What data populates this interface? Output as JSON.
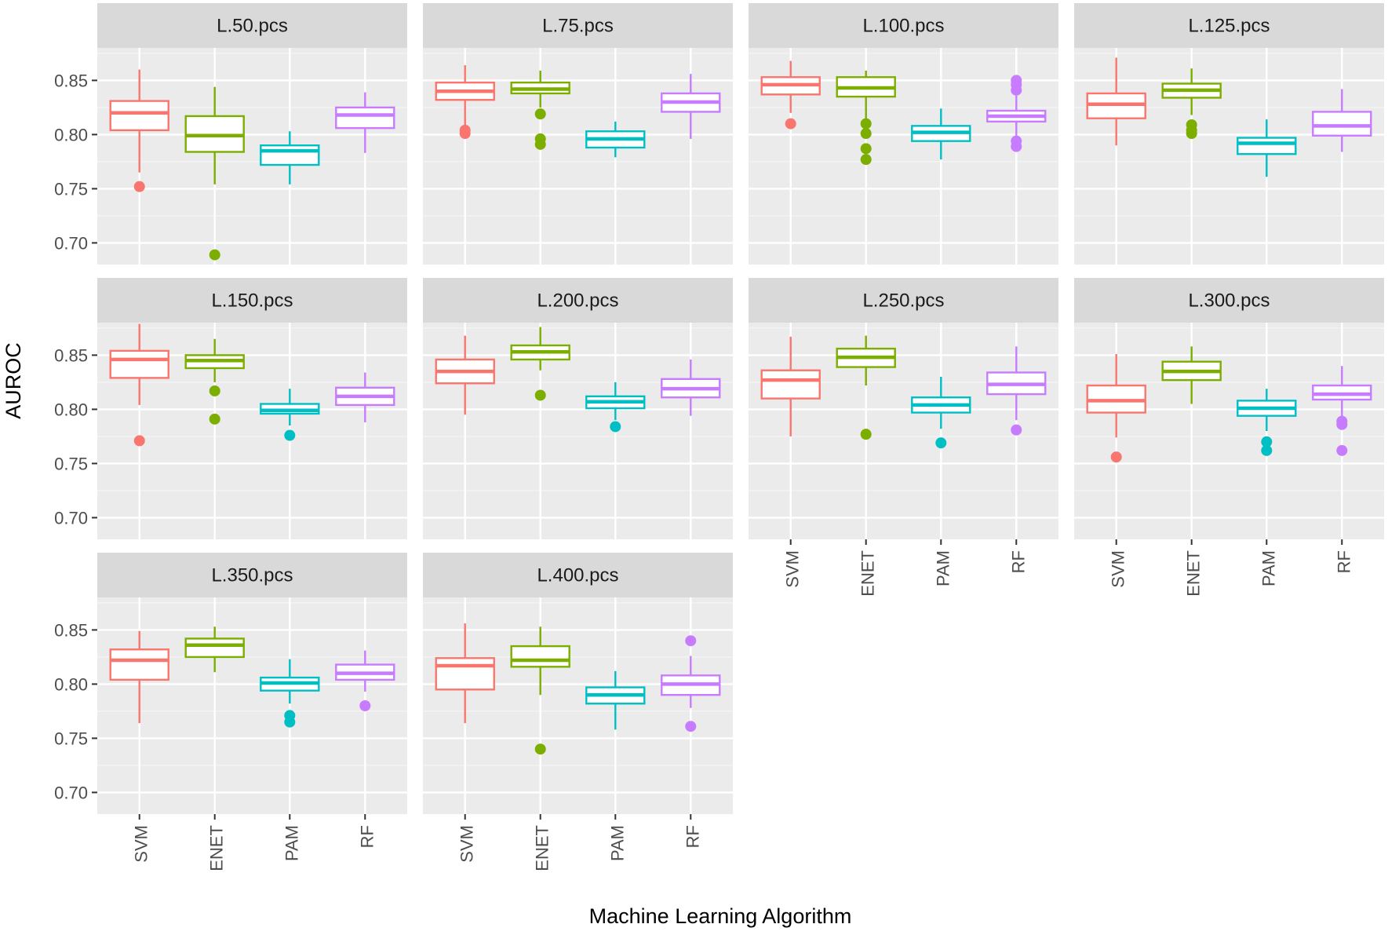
{
  "chart_data": {
    "type": "boxplot",
    "ylabel": "AUROC",
    "xlabel": "Machine Learning Algorithm",
    "ylim": [
      0.68,
      0.88
    ],
    "yticks": [
      0.7,
      0.75,
      0.8,
      0.85
    ],
    "ytick_labels": [
      "0.70",
      "0.75",
      "0.80",
      "0.85"
    ],
    "categories": [
      "SVM",
      "ENET",
      "PAM",
      "RF"
    ],
    "colors": {
      "SVM": "#F8766D",
      "ENET": "#7CAE00",
      "PAM": "#00BFC4",
      "RF": "#C77CFF"
    },
    "panels": [
      {
        "title": "L.50.pcs",
        "boxes": [
          {
            "min": 0.765,
            "q1": 0.804,
            "median": 0.82,
            "q3": 0.831,
            "max": 0.86,
            "outliers": [
              0.752
            ]
          },
          {
            "min": 0.754,
            "q1": 0.784,
            "median": 0.799,
            "q3": 0.817,
            "max": 0.844,
            "outliers": [
              0.689
            ]
          },
          {
            "min": 0.754,
            "q1": 0.772,
            "median": 0.785,
            "q3": 0.79,
            "max": 0.803,
            "outliers": []
          },
          {
            "min": 0.783,
            "q1": 0.806,
            "median": 0.818,
            "q3": 0.825,
            "max": 0.839,
            "outliers": []
          }
        ]
      },
      {
        "title": "L.75.pcs",
        "boxes": [
          {
            "min": 0.807,
            "q1": 0.832,
            "median": 0.84,
            "q3": 0.848,
            "max": 0.864,
            "outliers": [
              0.801,
              0.804
            ]
          },
          {
            "min": 0.825,
            "q1": 0.838,
            "median": 0.842,
            "q3": 0.848,
            "max": 0.859,
            "outliers": [
              0.819,
              0.796,
              0.791
            ]
          },
          {
            "min": 0.779,
            "q1": 0.788,
            "median": 0.796,
            "q3": 0.803,
            "max": 0.812,
            "outliers": []
          },
          {
            "min": 0.796,
            "q1": 0.821,
            "median": 0.83,
            "q3": 0.838,
            "max": 0.856,
            "outliers": []
          }
        ]
      },
      {
        "title": "L.100.pcs",
        "boxes": [
          {
            "min": 0.82,
            "q1": 0.837,
            "median": 0.846,
            "q3": 0.853,
            "max": 0.868,
            "outliers": [
              0.81
            ]
          },
          {
            "min": 0.814,
            "q1": 0.835,
            "median": 0.843,
            "q3": 0.853,
            "max": 0.859,
            "outliers": [
              0.81,
              0.801,
              0.787,
              0.777
            ]
          },
          {
            "min": 0.777,
            "q1": 0.794,
            "median": 0.802,
            "q3": 0.808,
            "max": 0.824,
            "outliers": []
          },
          {
            "min": 0.799,
            "q1": 0.812,
            "median": 0.817,
            "q3": 0.822,
            "max": 0.836,
            "outliers": [
              0.85,
              0.846,
              0.841,
              0.794,
              0.789
            ]
          }
        ]
      },
      {
        "title": "L.125.pcs",
        "boxes": [
          {
            "min": 0.79,
            "q1": 0.815,
            "median": 0.828,
            "q3": 0.838,
            "max": 0.871,
            "outliers": []
          },
          {
            "min": 0.818,
            "q1": 0.834,
            "median": 0.841,
            "q3": 0.847,
            "max": 0.861,
            "outliers": [
              0.809,
              0.804,
              0.801
            ]
          },
          {
            "min": 0.761,
            "q1": 0.782,
            "median": 0.792,
            "q3": 0.797,
            "max": 0.814,
            "outliers": []
          },
          {
            "min": 0.784,
            "q1": 0.799,
            "median": 0.808,
            "q3": 0.821,
            "max": 0.842,
            "outliers": []
          }
        ]
      },
      {
        "title": "L.150.pcs",
        "boxes": [
          {
            "min": 0.804,
            "q1": 0.829,
            "median": 0.846,
            "q3": 0.854,
            "max": 0.879,
            "outliers": [
              0.771
            ]
          },
          {
            "min": 0.825,
            "q1": 0.838,
            "median": 0.845,
            "q3": 0.85,
            "max": 0.865,
            "outliers": [
              0.817,
              0.791
            ]
          },
          {
            "min": 0.785,
            "q1": 0.796,
            "median": 0.799,
            "q3": 0.805,
            "max": 0.819,
            "outliers": [
              0.776
            ]
          },
          {
            "min": 0.788,
            "q1": 0.804,
            "median": 0.812,
            "q3": 0.82,
            "max": 0.834,
            "outliers": []
          }
        ]
      },
      {
        "title": "L.200.pcs",
        "boxes": [
          {
            "min": 0.795,
            "q1": 0.824,
            "median": 0.835,
            "q3": 0.846,
            "max": 0.868,
            "outliers": []
          },
          {
            "min": 0.836,
            "q1": 0.846,
            "median": 0.853,
            "q3": 0.859,
            "max": 0.876,
            "outliers": [
              0.813
            ]
          },
          {
            "min": 0.79,
            "q1": 0.801,
            "median": 0.807,
            "q3": 0.812,
            "max": 0.825,
            "outliers": [
              0.784
            ]
          },
          {
            "min": 0.794,
            "q1": 0.811,
            "median": 0.819,
            "q3": 0.828,
            "max": 0.846,
            "outliers": []
          }
        ]
      },
      {
        "title": "L.250.pcs",
        "boxes": [
          {
            "min": 0.775,
            "q1": 0.81,
            "median": 0.827,
            "q3": 0.836,
            "max": 0.867,
            "outliers": []
          },
          {
            "min": 0.822,
            "q1": 0.839,
            "median": 0.848,
            "q3": 0.856,
            "max": 0.868,
            "outliers": [
              0.777
            ]
          },
          {
            "min": 0.782,
            "q1": 0.797,
            "median": 0.804,
            "q3": 0.811,
            "max": 0.83,
            "outliers": [
              0.769
            ]
          },
          {
            "min": 0.79,
            "q1": 0.814,
            "median": 0.823,
            "q3": 0.834,
            "max": 0.858,
            "outliers": [
              0.781
            ]
          }
        ]
      },
      {
        "title": "L.300.pcs",
        "boxes": [
          {
            "min": 0.774,
            "q1": 0.797,
            "median": 0.808,
            "q3": 0.822,
            "max": 0.851,
            "outliers": [
              0.756
            ]
          },
          {
            "min": 0.805,
            "q1": 0.827,
            "median": 0.835,
            "q3": 0.844,
            "max": 0.858,
            "outliers": []
          },
          {
            "min": 0.78,
            "q1": 0.794,
            "median": 0.801,
            "q3": 0.808,
            "max": 0.819,
            "outliers": [
              0.77,
              0.762
            ]
          },
          {
            "min": 0.793,
            "q1": 0.809,
            "median": 0.814,
            "q3": 0.822,
            "max": 0.84,
            "outliers": [
              0.789,
              0.786,
              0.762
            ]
          }
        ]
      },
      {
        "title": "L.350.pcs",
        "boxes": [
          {
            "min": 0.764,
            "q1": 0.804,
            "median": 0.822,
            "q3": 0.832,
            "max": 0.849,
            "outliers": []
          },
          {
            "min": 0.811,
            "q1": 0.825,
            "median": 0.836,
            "q3": 0.842,
            "max": 0.853,
            "outliers": []
          },
          {
            "min": 0.782,
            "q1": 0.794,
            "median": 0.801,
            "q3": 0.806,
            "max": 0.823,
            "outliers": [
              0.771,
              0.765
            ]
          },
          {
            "min": 0.793,
            "q1": 0.804,
            "median": 0.81,
            "q3": 0.818,
            "max": 0.831,
            "outliers": [
              0.78
            ]
          }
        ]
      },
      {
        "title": "L.400.pcs",
        "boxes": [
          {
            "min": 0.764,
            "q1": 0.795,
            "median": 0.817,
            "q3": 0.824,
            "max": 0.856,
            "outliers": []
          },
          {
            "min": 0.79,
            "q1": 0.816,
            "median": 0.822,
            "q3": 0.835,
            "max": 0.853,
            "outliers": [
              0.74
            ]
          },
          {
            "min": 0.758,
            "q1": 0.782,
            "median": 0.79,
            "q3": 0.797,
            "max": 0.812,
            "outliers": []
          },
          {
            "min": 0.778,
            "q1": 0.79,
            "median": 0.8,
            "q3": 0.808,
            "max": 0.826,
            "outliers": [
              0.84,
              0.761
            ]
          }
        ]
      }
    ]
  }
}
